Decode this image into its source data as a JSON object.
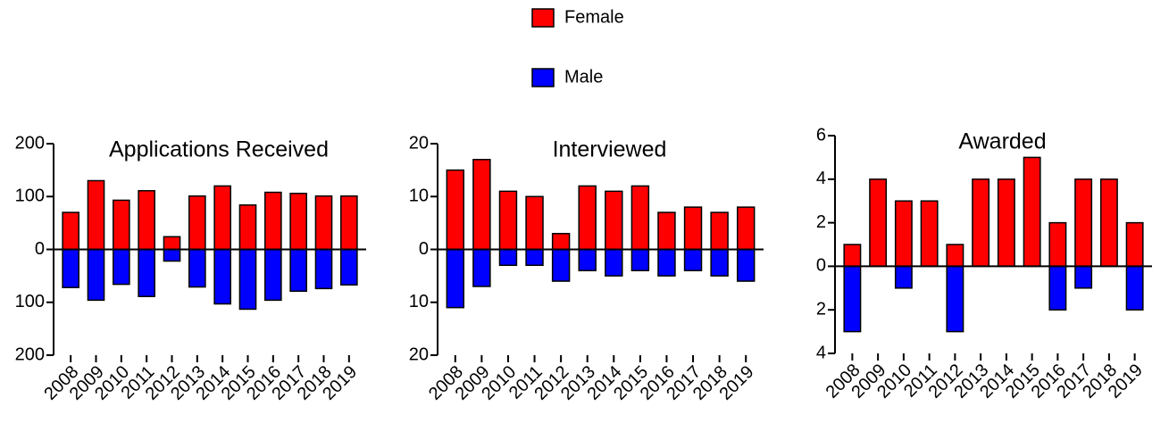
{
  "chart_data": [
    {
      "type": "bar",
      "title": "Applications Received",
      "categories": [
        "2008",
        "2009",
        "2010",
        "2011",
        "2012",
        "2013",
        "2014",
        "2015",
        "2016",
        "2017",
        "2018",
        "2019"
      ],
      "series": [
        {
          "name": "Female",
          "color": "#ff0000",
          "values": [
            70,
            130,
            93,
            111,
            24,
            101,
            120,
            84,
            108,
            106,
            101,
            101
          ]
        },
        {
          "name": "Male",
          "color": "#0000ff",
          "values": [
            -72,
            -96,
            -66,
            -89,
            -22,
            -71,
            -103,
            -113,
            -96,
            -79,
            -74,
            -67
          ]
        }
      ],
      "ylim": [
        -200,
        200
      ],
      "yticks": [
        {
          "value": -200,
          "label": "200"
        },
        {
          "value": -100,
          "label": "100"
        },
        0,
        100,
        200
      ]
    },
    {
      "type": "bar",
      "title": "Interviewed",
      "categories": [
        "2008",
        "2009",
        "2010",
        "2011",
        "2012",
        "2013",
        "2014",
        "2015",
        "2016",
        "2017",
        "2018",
        "2019"
      ],
      "series": [
        {
          "name": "Female",
          "color": "#ff0000",
          "values": [
            15,
            17,
            11,
            10,
            3,
            12,
            11,
            12,
            7,
            8,
            7,
            8
          ]
        },
        {
          "name": "Male",
          "color": "#0000ff",
          "values": [
            -11,
            -7,
            -3,
            -3,
            -6,
            -4,
            -5,
            -4,
            -5,
            -4,
            -5,
            -6
          ]
        }
      ],
      "ylim": [
        -20,
        20
      ],
      "yticks": [
        {
          "value": -20,
          "label": "20"
        },
        {
          "value": -10,
          "label": "10"
        },
        0,
        10,
        20
      ]
    },
    {
      "type": "bar",
      "title": "Awarded",
      "categories": [
        "2008",
        "2009",
        "2010",
        "2011",
        "2012",
        "2013",
        "2014",
        "2015",
        "2016",
        "2017",
        "2018",
        "2019"
      ],
      "series": [
        {
          "name": "Female",
          "color": "#ff0000",
          "values": [
            1,
            4,
            3,
            3,
            1,
            4,
            4,
            5,
            2,
            4,
            4,
            2
          ]
        },
        {
          "name": "Male",
          "color": "#0000ff",
          "values": [
            -3,
            0,
            -1,
            0,
            -3,
            0,
            0,
            0,
            -2,
            -1,
            0,
            -2
          ]
        }
      ],
      "ylim": [
        -4,
        6
      ],
      "yticks": [
        {
          "value": -4,
          "label": "4"
        },
        {
          "value": -2,
          "label": "2"
        },
        0,
        2,
        4,
        6
      ]
    }
  ]
}
